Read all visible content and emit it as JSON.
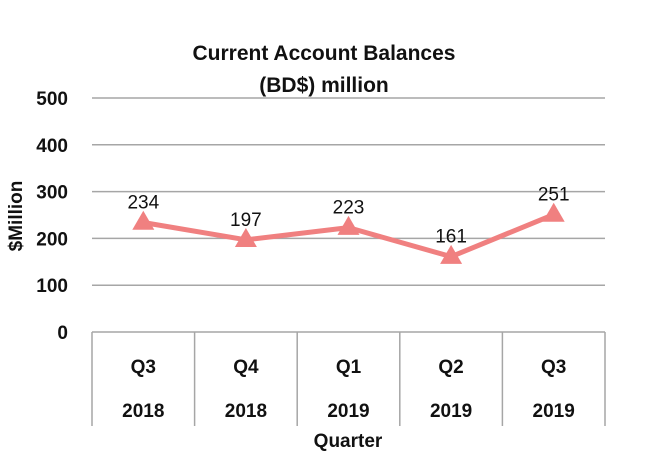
{
  "chart_data": {
    "type": "line",
    "title_lines": [
      "Current Account Balances",
      "(BD$) million"
    ],
    "xlabel": "Quarter",
    "ylabel": "$Million",
    "categories": [
      {
        "quarter": "Q3",
        "year": "2018"
      },
      {
        "quarter": "Q4",
        "year": "2018"
      },
      {
        "quarter": "Q1",
        "year": "2019"
      },
      {
        "quarter": "Q2",
        "year": "2019"
      },
      {
        "quarter": "Q3",
        "year": "2019"
      }
    ],
    "series": [
      {
        "values": [
          234,
          197,
          223,
          161,
          251
        ],
        "color": "#F08080",
        "marker": "triangle"
      }
    ],
    "data_labels": [
      "234",
      "197",
      "223",
      "161",
      "251"
    ],
    "ylim": [
      0,
      500
    ],
    "yticks": [
      "0",
      "100",
      "200",
      "300",
      "400",
      "500"
    ],
    "grid": true,
    "gridline_color": "#A6A6A6",
    "legend": "none"
  }
}
